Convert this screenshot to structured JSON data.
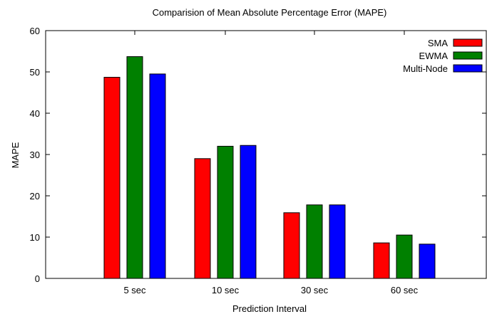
{
  "chart_data": {
    "type": "bar",
    "title": "Comparision of Mean Absolute Percentage Error (MAPE)",
    "xlabel": "Prediction Interval",
    "ylabel": "MAPE",
    "ylim": [
      0,
      60
    ],
    "yticks": [
      0,
      10,
      20,
      30,
      40,
      50,
      60
    ],
    "grid": false,
    "legend_position": "top-right",
    "categories": [
      "5 sec",
      "10 sec",
      "30 sec",
      "60 sec"
    ],
    "series": [
      {
        "name": "SMA",
        "color": "#ff0000",
        "values": [
          48.7,
          29.0,
          15.9,
          8.6
        ]
      },
      {
        "name": "EWMA",
        "color": "#008000",
        "values": [
          53.7,
          32.0,
          17.8,
          10.5
        ]
      },
      {
        "name": "Multi-Node",
        "color": "#0000ff",
        "values": [
          49.5,
          32.2,
          17.8,
          8.3
        ]
      }
    ]
  }
}
